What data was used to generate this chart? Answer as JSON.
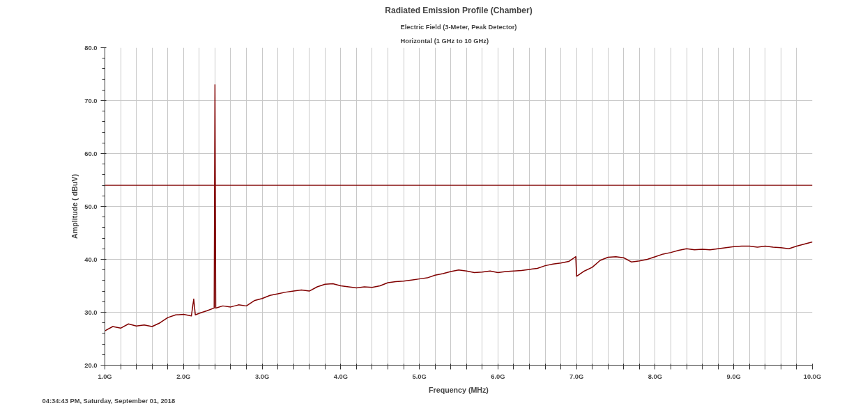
{
  "chart_data": {
    "type": "line",
    "title": "Radiated Emission Profile (Chamber)",
    "subtitle": "Electric Field (3-Meter, Peak Detector)\nHorizontal (1 GHz to 10 GHz)",
    "xlabel": "Frequency (MHz)",
    "ylabel": "Amplitude ( dBuV)",
    "annotations": [
      "04:34:43 PM, Saturday, September 01, 2018"
    ],
    "x": [
      1.0,
      1.1,
      1.2,
      1.3,
      1.4,
      1.5,
      1.6,
      1.7,
      1.8,
      1.9,
      2.0,
      2.1,
      2.13,
      2.15,
      2.2,
      2.3,
      2.39,
      2.4,
      2.41,
      2.5,
      2.6,
      2.7,
      2.8,
      2.9,
      3.0,
      3.1,
      3.2,
      3.3,
      3.4,
      3.5,
      3.6,
      3.7,
      3.8,
      3.9,
      4.0,
      4.1,
      4.2,
      4.3,
      4.4,
      4.5,
      4.6,
      4.7,
      4.8,
      4.9,
      5.0,
      5.1,
      5.2,
      5.3,
      5.4,
      5.5,
      5.6,
      5.7,
      5.8,
      5.9,
      6.0,
      6.1,
      6.2,
      6.3,
      6.4,
      6.5,
      6.6,
      6.7,
      6.8,
      6.9,
      6.99,
      7.0,
      7.1,
      7.2,
      7.3,
      7.4,
      7.5,
      7.6,
      7.7,
      7.8,
      7.9,
      8.0,
      8.1,
      8.2,
      8.3,
      8.4,
      8.5,
      8.6,
      8.7,
      8.8,
      8.9,
      9.0,
      9.1,
      9.2,
      9.3,
      9.4,
      9.5,
      9.6,
      9.7,
      9.8,
      9.9,
      10.0
    ],
    "series": [
      {
        "color": "#800000",
        "values": [
          26.5,
          27.3,
          27.0,
          27.8,
          27.4,
          27.6,
          27.3,
          28.0,
          29.0,
          29.5,
          29.6,
          29.3,
          32.5,
          29.5,
          29.8,
          30.3,
          30.8,
          73.0,
          30.8,
          31.2,
          31.0,
          31.4,
          31.2,
          32.2,
          32.6,
          33.2,
          33.5,
          33.8,
          34.0,
          34.2,
          34.0,
          34.8,
          35.3,
          35.4,
          35.0,
          34.8,
          34.6,
          34.8,
          34.7,
          35.0,
          35.6,
          35.8,
          35.9,
          36.1,
          36.3,
          36.5,
          37.0,
          37.3,
          37.7,
          38.0,
          37.8,
          37.5,
          37.6,
          37.8,
          37.5,
          37.7,
          37.8,
          37.9,
          38.1,
          38.3,
          38.8,
          39.1,
          39.3,
          39.6,
          40.5,
          36.8,
          37.8,
          38.5,
          39.8,
          40.4,
          40.5,
          40.3,
          39.5,
          39.7,
          40.0,
          40.5,
          41.0,
          41.3,
          41.7,
          42.0,
          41.8,
          41.9,
          41.8,
          42.0,
          42.2,
          42.4,
          42.5,
          42.5,
          42.3,
          42.5,
          42.3,
          42.2,
          42.0,
          42.5,
          42.9,
          43.3
        ]
      }
    ],
    "xlim": [
      1.0,
      10.0
    ],
    "xticks": [
      {
        "value": 1.0,
        "label": "1.0G"
      },
      {
        "value": 1.2,
        "label": null
      },
      {
        "value": 1.4,
        "label": null
      },
      {
        "value": 1.6,
        "label": null
      },
      {
        "value": 1.8,
        "label": null
      },
      {
        "value": 2.0,
        "label": "2.0G"
      },
      {
        "value": 2.2,
        "label": null
      },
      {
        "value": 2.4,
        "label": null
      },
      {
        "value": 2.6,
        "label": null
      },
      {
        "value": 2.8,
        "label": null
      },
      {
        "value": 3.0,
        "label": "3.0G"
      },
      {
        "value": 3.2,
        "label": null
      },
      {
        "value": 3.4,
        "label": null
      },
      {
        "value": 3.6,
        "label": null
      },
      {
        "value": 3.8,
        "label": null
      },
      {
        "value": 4.0,
        "label": "4.0G"
      },
      {
        "value": 4.2,
        "label": null
      },
      {
        "value": 4.4,
        "label": null
      },
      {
        "value": 4.6,
        "label": null
      },
      {
        "value": 4.8,
        "label": null
      },
      {
        "value": 5.0,
        "label": "5.0G"
      },
      {
        "value": 5.2,
        "label": null
      },
      {
        "value": 5.4,
        "label": null
      },
      {
        "value": 5.6,
        "label": null
      },
      {
        "value": 5.8,
        "label": null
      },
      {
        "value": 6.0,
        "label": "6.0G"
      },
      {
        "value": 6.2,
        "label": null
      },
      {
        "value": 6.4,
        "label": null
      },
      {
        "value": 6.6,
        "label": null
      },
      {
        "value": 6.8,
        "label": null
      },
      {
        "value": 7.0,
        "label": "7.0G"
      },
      {
        "value": 7.2,
        "label": null
      },
      {
        "value": 7.4,
        "label": null
      },
      {
        "value": 7.6,
        "label": null
      },
      {
        "value": 7.8,
        "label": null
      },
      {
        "value": 8.0,
        "label": "8.0G"
      },
      {
        "value": 8.2,
        "label": null
      },
      {
        "value": 8.4,
        "label": null
      },
      {
        "value": 8.6,
        "label": null
      },
      {
        "value": 8.8,
        "label": null
      },
      {
        "value": 9.0,
        "label": "9.0G"
      },
      {
        "value": 9.2,
        "label": null
      },
      {
        "value": 9.4,
        "label": null
      },
      {
        "value": 9.6,
        "label": null
      },
      {
        "value": 9.8,
        "label": null
      },
      {
        "value": 10.0,
        "label": "10.0G"
      }
    ],
    "ylim": [
      20,
      80
    ],
    "yticks": [
      {
        "value": 20,
        "label": "20.0"
      },
      {
        "value": 30,
        "label": "30.0"
      },
      {
        "value": 40,
        "label": "40.0"
      },
      {
        "value": 50,
        "label": "50.0"
      },
      {
        "value": 60,
        "label": "60.0"
      },
      {
        "value": 70,
        "label": "70.0"
      },
      {
        "value": 80,
        "label": "80.0"
      }
    ],
    "ref_lines": [
      {
        "axis": "y",
        "value": 54,
        "color": "#800000"
      }
    ],
    "grid": true,
    "line_style": "solid",
    "marker": "none"
  }
}
